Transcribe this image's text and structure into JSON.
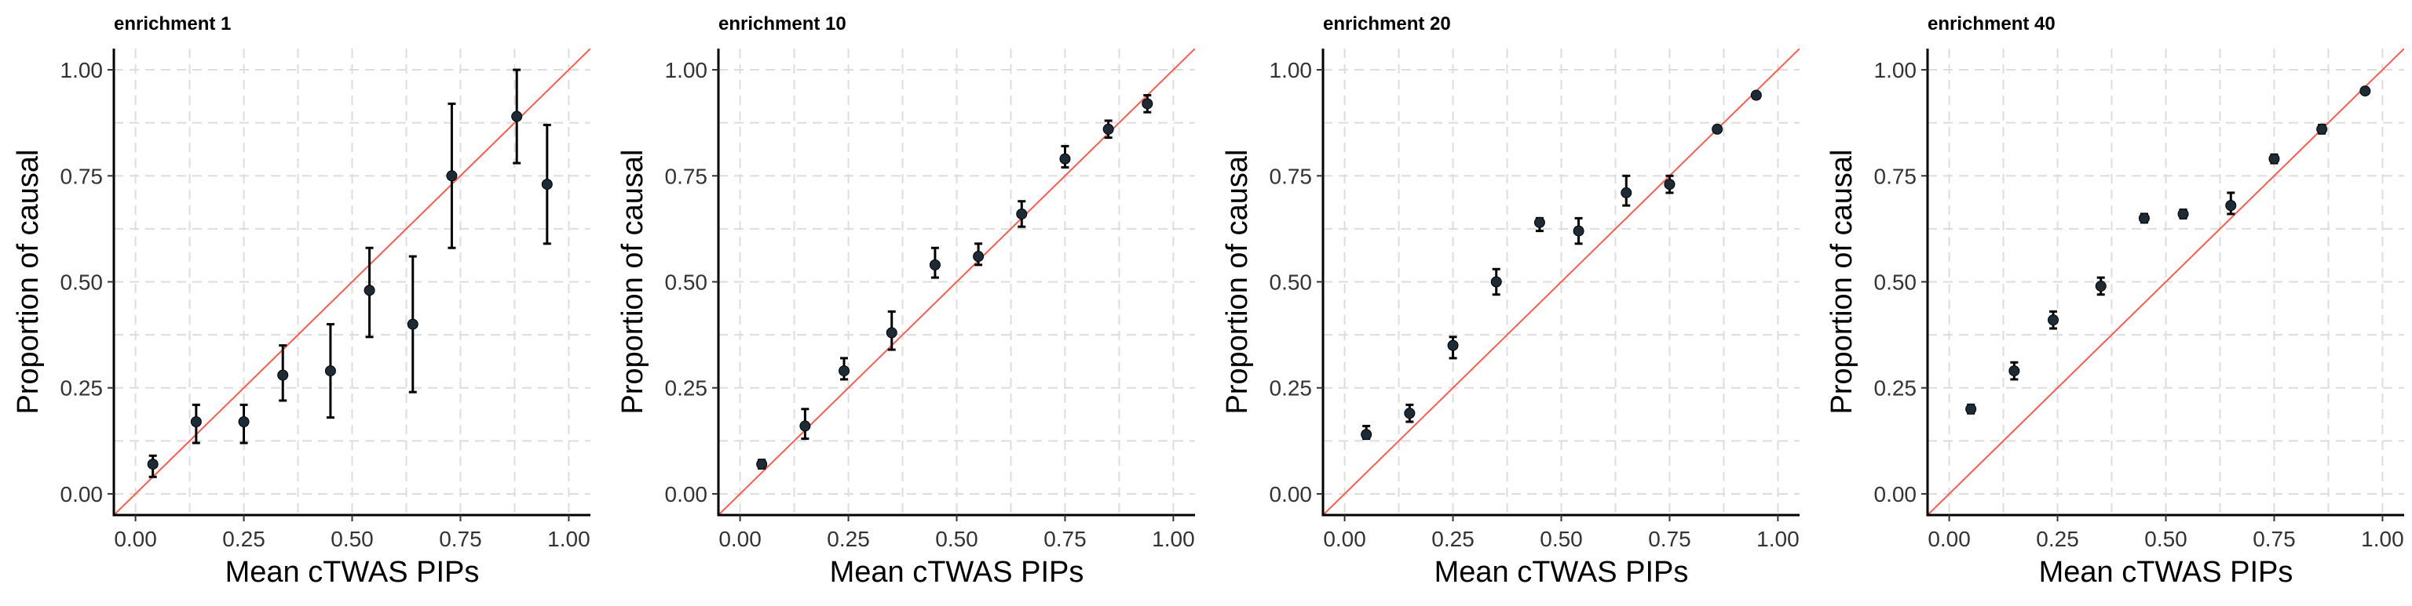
{
  "chart_data": [
    {
      "type": "scatter",
      "title": "enrichment 1",
      "xlabel": "Mean cTWAS PIPs",
      "ylabel": "Proportion of causal",
      "xlim": [
        -0.05,
        1.05
      ],
      "ylim": [
        -0.05,
        1.05
      ],
      "xticks": [
        "0.00",
        "0.25",
        "0.50",
        "0.75",
        "1.00"
      ],
      "yticks": [
        "0.00",
        "0.25",
        "0.50",
        "0.75",
        "1.00"
      ],
      "reference_line": "y = x",
      "points": [
        {
          "x": 0.04,
          "y": 0.07,
          "ymin": 0.04,
          "ymax": 0.09
        },
        {
          "x": 0.14,
          "y": 0.17,
          "ymin": 0.12,
          "ymax": 0.21
        },
        {
          "x": 0.25,
          "y": 0.17,
          "ymin": 0.12,
          "ymax": 0.21
        },
        {
          "x": 0.34,
          "y": 0.28,
          "ymin": 0.22,
          "ymax": 0.35
        },
        {
          "x": 0.45,
          "y": 0.29,
          "ymin": 0.18,
          "ymax": 0.4
        },
        {
          "x": 0.54,
          "y": 0.48,
          "ymin": 0.37,
          "ymax": 0.58
        },
        {
          "x": 0.64,
          "y": 0.4,
          "ymin": 0.24,
          "ymax": 0.56
        },
        {
          "x": 0.73,
          "y": 0.75,
          "ymin": 0.58,
          "ymax": 0.92
        },
        {
          "x": 0.88,
          "y": 0.89,
          "ymin": 0.78,
          "ymax": 1.0
        },
        {
          "x": 0.95,
          "y": 0.73,
          "ymin": 0.59,
          "ymax": 0.87
        }
      ]
    },
    {
      "type": "scatter",
      "title": "enrichment 10",
      "xlabel": "Mean cTWAS PIPs",
      "ylabel": "Proportion of causal",
      "xlim": [
        -0.05,
        1.05
      ],
      "ylim": [
        -0.05,
        1.05
      ],
      "xticks": [
        "0.00",
        "0.25",
        "0.50",
        "0.75",
        "1.00"
      ],
      "yticks": [
        "0.00",
        "0.25",
        "0.50",
        "0.75",
        "1.00"
      ],
      "reference_line": "y = x",
      "points": [
        {
          "x": 0.05,
          "y": 0.07,
          "ymin": 0.06,
          "ymax": 0.08
        },
        {
          "x": 0.15,
          "y": 0.16,
          "ymin": 0.13,
          "ymax": 0.2
        },
        {
          "x": 0.24,
          "y": 0.29,
          "ymin": 0.27,
          "ymax": 0.32
        },
        {
          "x": 0.35,
          "y": 0.38,
          "ymin": 0.34,
          "ymax": 0.43
        },
        {
          "x": 0.45,
          "y": 0.54,
          "ymin": 0.51,
          "ymax": 0.58
        },
        {
          "x": 0.55,
          "y": 0.56,
          "ymin": 0.54,
          "ymax": 0.59
        },
        {
          "x": 0.65,
          "y": 0.66,
          "ymin": 0.63,
          "ymax": 0.69
        },
        {
          "x": 0.75,
          "y": 0.79,
          "ymin": 0.77,
          "ymax": 0.82
        },
        {
          "x": 0.85,
          "y": 0.86,
          "ymin": 0.84,
          "ymax": 0.88
        },
        {
          "x": 0.94,
          "y": 0.92,
          "ymin": 0.9,
          "ymax": 0.94
        }
      ]
    },
    {
      "type": "scatter",
      "title": "enrichment 20",
      "xlabel": "Mean cTWAS PIPs",
      "ylabel": "Proportion of causal",
      "xlim": [
        -0.05,
        1.05
      ],
      "ylim": [
        -0.05,
        1.05
      ],
      "xticks": [
        "0.00",
        "0.25",
        "0.50",
        "0.75",
        "1.00"
      ],
      "yticks": [
        "0.00",
        "0.25",
        "0.50",
        "0.75",
        "1.00"
      ],
      "reference_line": "y = x",
      "points": [
        {
          "x": 0.05,
          "y": 0.14,
          "ymin": 0.13,
          "ymax": 0.16
        },
        {
          "x": 0.15,
          "y": 0.19,
          "ymin": 0.17,
          "ymax": 0.21
        },
        {
          "x": 0.25,
          "y": 0.35,
          "ymin": 0.32,
          "ymax": 0.37
        },
        {
          "x": 0.35,
          "y": 0.5,
          "ymin": 0.47,
          "ymax": 0.53
        },
        {
          "x": 0.45,
          "y": 0.64,
          "ymin": 0.62,
          "ymax": 0.65
        },
        {
          "x": 0.54,
          "y": 0.62,
          "ymin": 0.59,
          "ymax": 0.65
        },
        {
          "x": 0.65,
          "y": 0.71,
          "ymin": 0.68,
          "ymax": 0.75
        },
        {
          "x": 0.75,
          "y": 0.73,
          "ymin": 0.71,
          "ymax": 0.75
        },
        {
          "x": 0.86,
          "y": 0.86,
          "ymin": 0.855,
          "ymax": 0.865
        },
        {
          "x": 0.95,
          "y": 0.94,
          "ymin": 0.935,
          "ymax": 0.945
        }
      ]
    },
    {
      "type": "scatter",
      "title": "enrichment 40",
      "xlabel": "Mean cTWAS PIPs",
      "ylabel": "Proportion of causal",
      "xlim": [
        -0.05,
        1.05
      ],
      "ylim": [
        -0.05,
        1.05
      ],
      "xticks": [
        "0.00",
        "0.25",
        "0.50",
        "0.75",
        "1.00"
      ],
      "yticks": [
        "0.00",
        "0.25",
        "0.50",
        "0.75",
        "1.00"
      ],
      "reference_line": "y = x",
      "points": [
        {
          "x": 0.05,
          "y": 0.2,
          "ymin": 0.19,
          "ymax": 0.21
        },
        {
          "x": 0.15,
          "y": 0.29,
          "ymin": 0.27,
          "ymax": 0.31
        },
        {
          "x": 0.24,
          "y": 0.41,
          "ymin": 0.39,
          "ymax": 0.43
        },
        {
          "x": 0.35,
          "y": 0.49,
          "ymin": 0.47,
          "ymax": 0.51
        },
        {
          "x": 0.45,
          "y": 0.65,
          "ymin": 0.64,
          "ymax": 0.66
        },
        {
          "x": 0.54,
          "y": 0.66,
          "ymin": 0.65,
          "ymax": 0.67
        },
        {
          "x": 0.65,
          "y": 0.68,
          "ymin": 0.66,
          "ymax": 0.71
        },
        {
          "x": 0.75,
          "y": 0.79,
          "ymin": 0.78,
          "ymax": 0.8
        },
        {
          "x": 0.86,
          "y": 0.86,
          "ymin": 0.85,
          "ymax": 0.87
        },
        {
          "x": 0.96,
          "y": 0.95,
          "ymin": 0.945,
          "ymax": 0.955
        }
      ]
    }
  ]
}
